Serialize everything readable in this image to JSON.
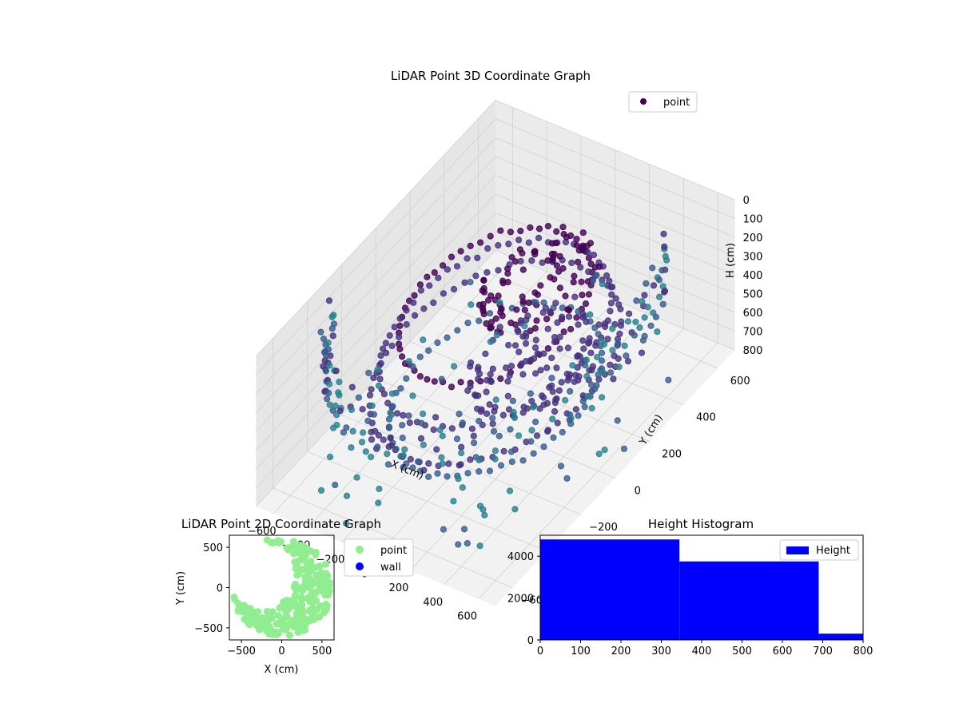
{
  "chart_data": [
    {
      "type": "scatter3d",
      "title": "LiDAR Point 3D Coordinate Graph",
      "xlabel": "X (cm)",
      "ylabel": "Y (cm)",
      "zlabel": "H (cm)",
      "xlim": [
        -700,
        700
      ],
      "ylim": [
        -700,
        700
      ],
      "zlim": [
        800,
        0
      ],
      "x_ticks": [
        -600,
        -400,
        -200,
        0,
        200,
        400,
        600
      ],
      "y_ticks": [
        -600,
        -400,
        -200,
        0,
        200,
        400,
        600
      ],
      "z_ticks": [
        0,
        100,
        200,
        300,
        400,
        500,
        600,
        700,
        800
      ],
      "legend": [
        "point"
      ],
      "legend_position": "top-right",
      "colormap": "viridis",
      "grid": true,
      "series": [
        {
          "name": "point",
          "groups": [
            {
              "label": "spiral ring",
              "radius": 400,
              "cx": 0,
              "cy": 0,
              "h": 150,
              "count": 60
            },
            {
              "label": "spiral ring",
              "radius": 480,
              "cx": 0,
              "cy": 0,
              "h": 300,
              "count": 70
            },
            {
              "label": "spiral ring",
              "radius": 520,
              "cx": 0,
              "cy": 0,
              "h": 450,
              "count": 70
            },
            {
              "label": "spiral ring",
              "radius": 440,
              "cx": 0,
              "cy": 0,
              "h": 600,
              "count": 60
            },
            {
              "label": "inner disc",
              "radius": 260,
              "cx": 150,
              "cy": 100,
              "h": 60,
              "count": 90
            },
            {
              "label": "inner disc",
              "radius": 300,
              "cx": 150,
              "cy": 100,
              "h": 480,
              "count": 110
            },
            {
              "label": "outer wall columns",
              "radius": 700,
              "h_range": [
                0,
                800
              ],
              "count": 30
            }
          ]
        }
      ]
    },
    {
      "type": "scatter",
      "title": "LiDAR Point 2D Coordinate Graph",
      "xlabel": "X (cm)",
      "ylabel": "Y (cm)",
      "xlim": [
        -650,
        650
      ],
      "ylim": [
        -650,
        650
      ],
      "x_ticks": [
        -500,
        0,
        500
      ],
      "y_ticks": [
        -500,
        0,
        500
      ],
      "legend_position": "outside-right",
      "series": [
        {
          "name": "point",
          "color": "#90ee90",
          "shape": "crescent",
          "outer_radius": 620,
          "inner_center": [
            -250,
            150
          ],
          "inner_radius": 420
        },
        {
          "name": "wall",
          "color": "#0000ff",
          "values": []
        }
      ]
    },
    {
      "type": "bar",
      "title": "Height Histogram",
      "xlim": [
        0,
        800
      ],
      "ylim": [
        0,
        5000
      ],
      "x_ticks": [
        0,
        100,
        200,
        300,
        400,
        500,
        600,
        700,
        800
      ],
      "y_ticks": [
        0,
        2000,
        4000
      ],
      "legend_position": "top-right",
      "series": [
        {
          "name": "Height",
          "color": "#0000ff",
          "bins": [
            [
              0,
              345
            ],
            [
              345,
              690
            ],
            [
              690,
              800
            ]
          ],
          "values": [
            4800,
            3750,
            300
          ]
        }
      ]
    }
  ]
}
